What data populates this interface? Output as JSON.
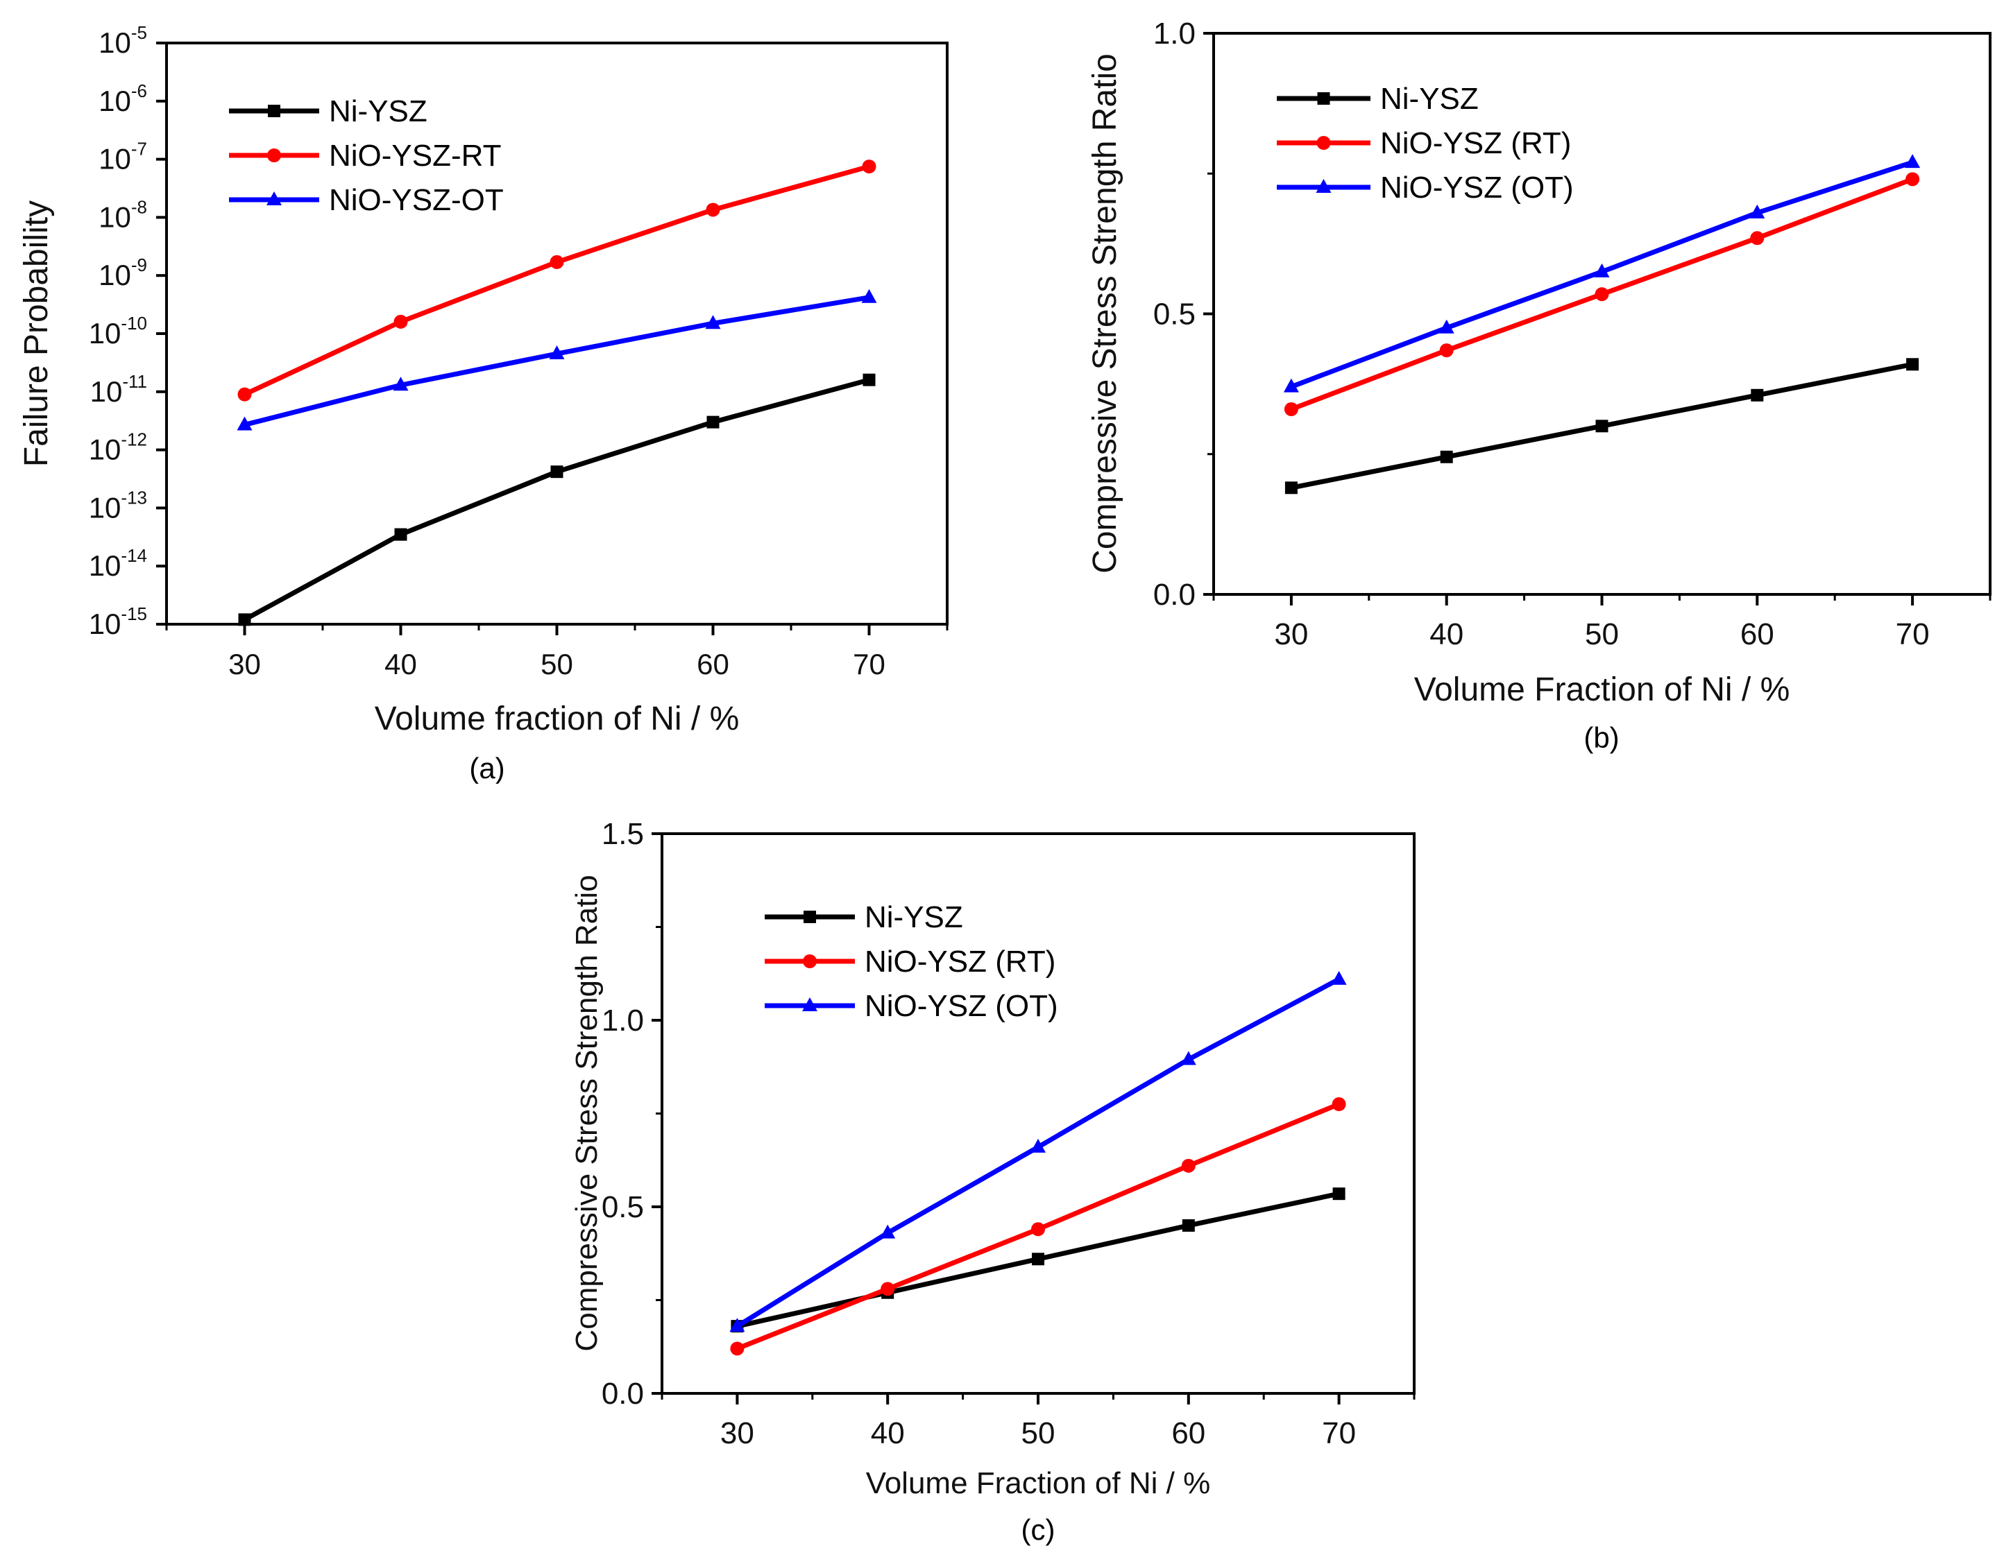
{
  "chart_data": [
    {
      "id": "a",
      "type": "line",
      "yscale": "log",
      "caption": "(a)",
      "xlabel": "Volume fraction of Ni / %",
      "ylabel": "Failure Probability",
      "x": [
        30,
        40,
        50,
        60,
        70
      ],
      "xlim": [
        25,
        75
      ],
      "xticks": [
        "30",
        "40",
        "50",
        "60",
        "70"
      ],
      "ylim_exp": [
        -15,
        -5
      ],
      "yticks": [
        {
          "base": "10",
          "exp": "-15"
        },
        {
          "base": "10",
          "exp": "-14"
        },
        {
          "base": "10",
          "exp": "-13"
        },
        {
          "base": "10",
          "exp": "-12"
        },
        {
          "base": "10",
          "exp": "-11"
        },
        {
          "base": "10",
          "exp": "-10"
        },
        {
          "base": "10",
          "exp": "-9"
        },
        {
          "base": "10",
          "exp": "-8"
        },
        {
          "base": "10",
          "exp": "-7"
        },
        {
          "base": "10",
          "exp": "-6"
        },
        {
          "base": "10",
          "exp": "-5"
        }
      ],
      "legend_position": "top-left",
      "series": [
        {
          "name": "Ni-YSZ",
          "color": "#000000",
          "marker": "square",
          "values": [
            1.2e-15,
            3.5e-14,
            4.2e-13,
            3e-12,
            1.6e-11
          ]
        },
        {
          "name": "NiO-YSZ-RT",
          "color": "#ff0000",
          "marker": "circle",
          "values": [
            9e-12,
            1.6e-10,
            1.7e-09,
            1.35e-08,
            7.5e-08
          ]
        },
        {
          "name": "NiO-YSZ-OT",
          "color": "#0000ff",
          "marker": "triangle",
          "values": [
            2.7e-12,
            1.3e-11,
            4.5e-11,
            1.5e-10,
            4.2e-10
          ]
        }
      ]
    },
    {
      "id": "b",
      "type": "line",
      "yscale": "linear",
      "caption": "(b)",
      "xlabel": "Volume Fraction of Ni / %",
      "ylabel": "Compressive Stress Strength Ratio",
      "x": [
        30,
        40,
        50,
        60,
        70
      ],
      "xlim": [
        25,
        75
      ],
      "xticks": [
        "30",
        "40",
        "50",
        "60",
        "70"
      ],
      "ylim": [
        0,
        1
      ],
      "yticks": [
        "0.0",
        "0.5",
        "1.0"
      ],
      "legend_position": "top-left",
      "series": [
        {
          "name": "Ni-YSZ",
          "color": "#000000",
          "marker": "square",
          "values": [
            0.19,
            0.245,
            0.3,
            0.355,
            0.41
          ]
        },
        {
          "name": "NiO-YSZ (RT)",
          "color": "#ff0000",
          "marker": "circle",
          "values": [
            0.33,
            0.435,
            0.535,
            0.635,
            0.74
          ]
        },
        {
          "name": "NiO-YSZ (OT)",
          "color": "#0000ff",
          "marker": "triangle",
          "values": [
            0.37,
            0.475,
            0.575,
            0.68,
            0.77
          ]
        }
      ]
    },
    {
      "id": "c",
      "type": "line",
      "yscale": "linear",
      "caption": "(c)",
      "xlabel": "Volume Fraction of Ni / %",
      "ylabel": "Compressive Stress Strength Ratio",
      "x": [
        30,
        40,
        50,
        60,
        70
      ],
      "xlim": [
        25,
        75
      ],
      "xticks": [
        "30",
        "40",
        "50",
        "60",
        "70"
      ],
      "ylim": [
        0,
        1.5
      ],
      "yticks": [
        "0.0",
        "0.5",
        "1.0",
        "1.5"
      ],
      "legend_position": "top-left",
      "series": [
        {
          "name": "Ni-YSZ",
          "color": "#000000",
          "marker": "square",
          "values": [
            0.18,
            0.27,
            0.36,
            0.45,
            0.535
          ]
        },
        {
          "name": "NiO-YSZ (RT)",
          "color": "#ff0000",
          "marker": "circle",
          "values": [
            0.12,
            0.28,
            0.44,
            0.61,
            0.775
          ]
        },
        {
          "name": "NiO-YSZ (OT)",
          "color": "#0000ff",
          "marker": "triangle",
          "values": [
            0.18,
            0.43,
            0.66,
            0.895,
            1.11
          ]
        }
      ]
    }
  ]
}
